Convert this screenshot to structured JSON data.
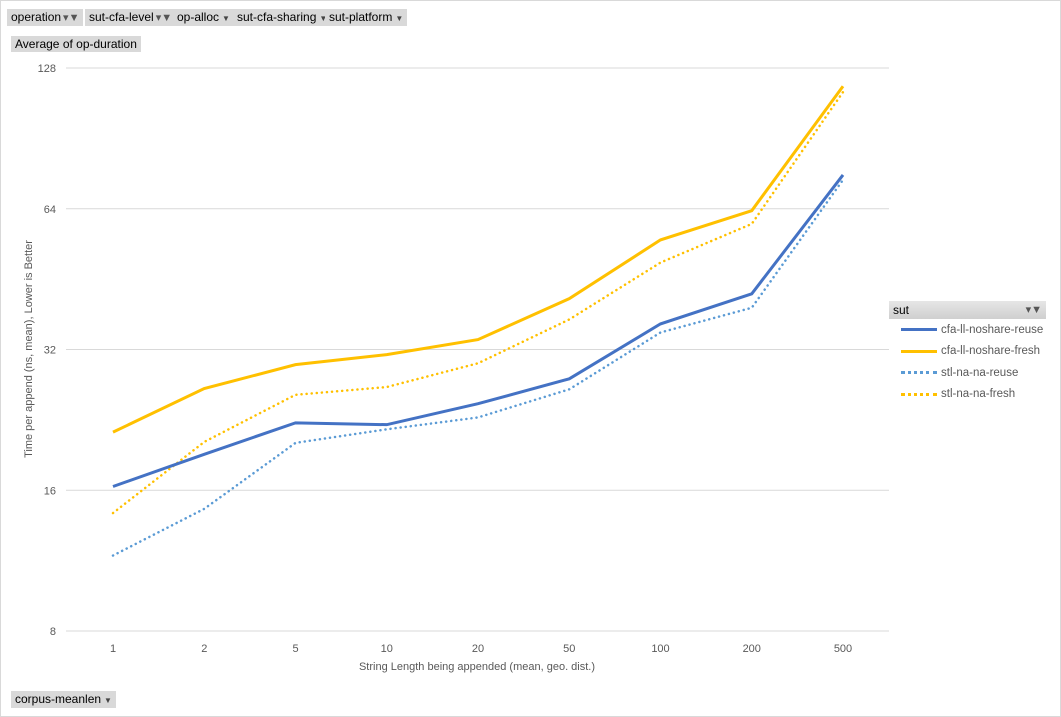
{
  "filters": [
    {
      "label": "operation",
      "filtered": true
    },
    {
      "label": "sut-cfa-level",
      "filtered": true
    },
    {
      "label": "op-alloc",
      "filtered": false
    },
    {
      "label": "sut-cfa-sharing",
      "filtered": false
    },
    {
      "label": "sut-platform",
      "filtered": false
    }
  ],
  "values_field": "Average of op-duration",
  "axis_field": "corpus-meanlen",
  "legend": {
    "title": "sut"
  },
  "chart_data": {
    "type": "line",
    "xlabel": "String Length  being appended (mean, geo. dist.)",
    "ylabel": "Time per append (ns, mean),  Lower is Better",
    "yscale": "log2",
    "ylim": [
      8,
      128
    ],
    "yticks": [
      8,
      16,
      32,
      64,
      128
    ],
    "grid": true,
    "legend_position": "right",
    "categories": [
      "1",
      "2",
      "5",
      "10",
      "20",
      "50",
      "100",
      "200",
      "500"
    ],
    "series": [
      {
        "name": "cfa-ll-noshare-reuse",
        "color": "#4472C4",
        "dash": "solid",
        "values": [
          16.3,
          19.1,
          22.3,
          22.1,
          24.5,
          27.7,
          36.3,
          42.1,
          75.6
        ]
      },
      {
        "name": "cfa-ll-noshare-fresh",
        "color": "#FFC000",
        "dash": "solid",
        "values": [
          21.3,
          26.4,
          29.7,
          31.2,
          33.6,
          41.1,
          54.9,
          63.4,
          117
        ]
      },
      {
        "name": "stl-na-na-reuse",
        "color": "#5B9BD5",
        "dash": "dotted",
        "values": [
          11.6,
          14.6,
          20.2,
          21.6,
          22.9,
          26.3,
          34.8,
          39.3,
          73.8
        ]
      },
      {
        "name": "stl-na-na-fresh",
        "color": "#FFC000",
        "dash": "dotted",
        "values": [
          14.3,
          20.3,
          25.6,
          26.6,
          29.9,
          37.1,
          49.1,
          59.4,
          113.7
        ]
      }
    ]
  }
}
